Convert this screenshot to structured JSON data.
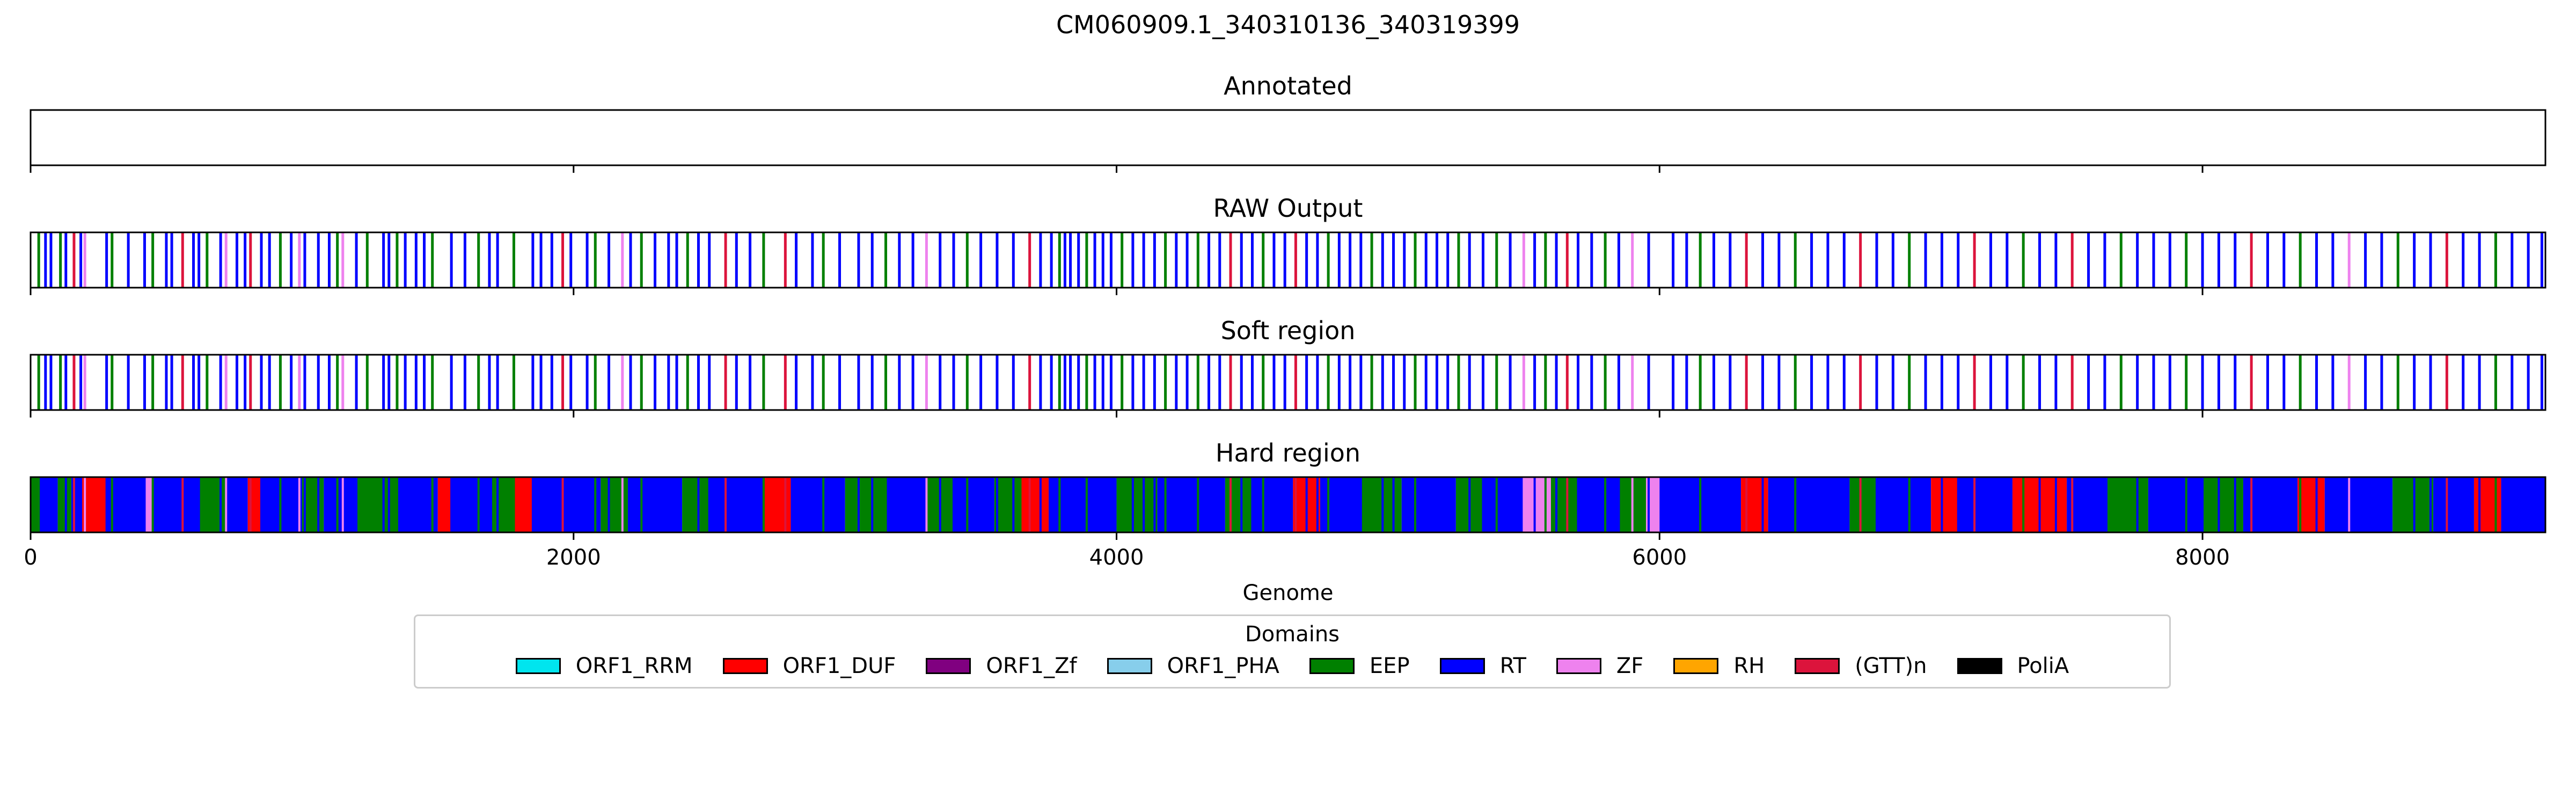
{
  "chart_data": {
    "type": "bar",
    "title": "CM060909.1_340310136_340319399",
    "xlabel": "Genome",
    "xlim": [
      0,
      9263
    ],
    "xticks": [
      0,
      2000,
      4000,
      6000,
      8000
    ],
    "xtick_labels": [
      "0",
      "2000",
      "4000",
      "6000",
      "8000"
    ],
    "panels": [
      {
        "title": "Annotated",
        "mode": "empty"
      },
      {
        "title": "RAW Output",
        "mode": "lines"
      },
      {
        "title": "Soft region",
        "mode": "lines"
      },
      {
        "title": "Hard region",
        "mode": "blocks"
      }
    ],
    "legend": {
      "title": "Domains",
      "placement": "bottom-center",
      "entries": [
        {
          "label": "ORF1_RRM",
          "color": "#00e5ee"
        },
        {
          "label": "ORF1_DUF",
          "color": "#ff0000"
        },
        {
          "label": "ORF1_Zf",
          "color": "#800080"
        },
        {
          "label": "ORF1_PHA",
          "color": "#87ceeb"
        },
        {
          "label": "EEP",
          "color": "#008000"
        },
        {
          "label": "RT",
          "color": "#0000ff"
        },
        {
          "label": "ZF",
          "color": "#ee82ee"
        },
        {
          "label": "RH",
          "color": "#ffa500"
        },
        {
          "label": "(GTT)n",
          "color": "#dc143c"
        },
        {
          "label": "PoliA",
          "color": "#000000"
        }
      ]
    },
    "raw_lines": [
      [
        30,
        "EEP"
      ],
      [
        55,
        "RT"
      ],
      [
        75,
        "RT"
      ],
      [
        110,
        "EEP"
      ],
      [
        130,
        "RT"
      ],
      [
        160,
        "(GTT)n"
      ],
      [
        185,
        "RT"
      ],
      [
        200,
        "ZF"
      ],
      [
        280,
        "RT"
      ],
      [
        300,
        "EEP"
      ],
      [
        360,
        "RT"
      ],
      [
        420,
        "RT"
      ],
      [
        450,
        "EEP"
      ],
      [
        500,
        "RT"
      ],
      [
        520,
        "RT"
      ],
      [
        560,
        "(GTT)n"
      ],
      [
        600,
        "RT"
      ],
      [
        620,
        "RT"
      ],
      [
        650,
        "EEP"
      ],
      [
        700,
        "RT"
      ],
      [
        720,
        "ZF"
      ],
      [
        760,
        "RT"
      ],
      [
        790,
        "RT"
      ],
      [
        810,
        "(GTT)n"
      ],
      [
        850,
        "RT"
      ],
      [
        880,
        "RT"
      ],
      [
        920,
        "EEP"
      ],
      [
        960,
        "RT"
      ],
      [
        990,
        "ZF"
      ],
      [
        1010,
        "RT"
      ],
      [
        1060,
        "RT"
      ],
      [
        1100,
        "RT"
      ],
      [
        1130,
        "EEP"
      ],
      [
        1150,
        "ZF"
      ],
      [
        1200,
        "RT"
      ],
      [
        1240,
        "EEP"
      ],
      [
        1300,
        "RT"
      ],
      [
        1320,
        "RT"
      ],
      [
        1350,
        "EEP"
      ],
      [
        1380,
        "RT"
      ],
      [
        1420,
        "RT"
      ],
      [
        1450,
        "RT"
      ],
      [
        1480,
        "EEP"
      ],
      [
        1550,
        "RT"
      ],
      [
        1600,
        "RT"
      ],
      [
        1650,
        "EEP"
      ],
      [
        1690,
        "RT"
      ],
      [
        1720,
        "RT"
      ],
      [
        1780,
        "EEP"
      ],
      [
        1850,
        "RT"
      ],
      [
        1880,
        "RT"
      ],
      [
        1920,
        "RT"
      ],
      [
        1960,
        "(GTT)n"
      ],
      [
        1990,
        "RT"
      ],
      [
        2050,
        "RT"
      ],
      [
        2080,
        "EEP"
      ],
      [
        2130,
        "RT"
      ],
      [
        2180,
        "ZF"
      ],
      [
        2210,
        "RT"
      ],
      [
        2250,
        "EEP"
      ],
      [
        2300,
        "RT"
      ],
      [
        2350,
        "RT"
      ],
      [
        2380,
        "RT"
      ],
      [
        2420,
        "EEP"
      ],
      [
        2460,
        "RT"
      ],
      [
        2500,
        "RT"
      ],
      [
        2560,
        "(GTT)n"
      ],
      [
        2600,
        "RT"
      ],
      [
        2650,
        "RT"
      ],
      [
        2700,
        "EEP"
      ],
      [
        2780,
        "(GTT)n"
      ],
      [
        2820,
        "RT"
      ],
      [
        2880,
        "RT"
      ],
      [
        2920,
        "EEP"
      ],
      [
        2980,
        "RT"
      ],
      [
        3050,
        "RT"
      ],
      [
        3100,
        "RT"
      ],
      [
        3150,
        "EEP"
      ],
      [
        3200,
        "RT"
      ],
      [
        3250,
        "RT"
      ],
      [
        3300,
        "ZF"
      ],
      [
        3350,
        "RT"
      ],
      [
        3400,
        "RT"
      ],
      [
        3450,
        "EEP"
      ],
      [
        3500,
        "RT"
      ],
      [
        3560,
        "RT"
      ],
      [
        3620,
        "RT"
      ],
      [
        3680,
        "(GTT)n"
      ],
      [
        3720,
        "RT"
      ],
      [
        3760,
        "RT"
      ],
      [
        3790,
        "EEP"
      ],
      [
        3810,
        "RT"
      ],
      [
        3830,
        "RT"
      ],
      [
        3860,
        "RT"
      ],
      [
        3890,
        "EEP"
      ],
      [
        3920,
        "RT"
      ],
      [
        3950,
        "RT"
      ],
      [
        3980,
        "RT"
      ],
      [
        4020,
        "EEP"
      ],
      [
        4060,
        "RT"
      ],
      [
        4100,
        "RT"
      ],
      [
        4140,
        "RT"
      ],
      [
        4180,
        "EEP"
      ],
      [
        4220,
        "RT"
      ],
      [
        4260,
        "RT"
      ],
      [
        4300,
        "EEP"
      ],
      [
        4340,
        "RT"
      ],
      [
        4380,
        "RT"
      ],
      [
        4420,
        "(GTT)n"
      ],
      [
        4460,
        "RT"
      ],
      [
        4500,
        "RT"
      ],
      [
        4540,
        "EEP"
      ],
      [
        4580,
        "RT"
      ],
      [
        4620,
        "RT"
      ],
      [
        4660,
        "(GTT)n"
      ],
      [
        4700,
        "RT"
      ],
      [
        4740,
        "RT"
      ],
      [
        4780,
        "EEP"
      ],
      [
        4820,
        "RT"
      ],
      [
        4860,
        "RT"
      ],
      [
        4900,
        "RT"
      ],
      [
        4940,
        "EEP"
      ],
      [
        4980,
        "RT"
      ],
      [
        5020,
        "RT"
      ],
      [
        5060,
        "RT"
      ],
      [
        5100,
        "EEP"
      ],
      [
        5140,
        "RT"
      ],
      [
        5180,
        "RT"
      ],
      [
        5220,
        "RT"
      ],
      [
        5260,
        "EEP"
      ],
      [
        5300,
        "RT"
      ],
      [
        5350,
        "RT"
      ],
      [
        5400,
        "EEP"
      ],
      [
        5450,
        "RT"
      ],
      [
        5500,
        "ZF"
      ],
      [
        5540,
        "RT"
      ],
      [
        5580,
        "EEP"
      ],
      [
        5620,
        "RT"
      ],
      [
        5660,
        "(GTT)n"
      ],
      [
        5700,
        "RT"
      ],
      [
        5750,
        "RT"
      ],
      [
        5800,
        "EEP"
      ],
      [
        5850,
        "RT"
      ],
      [
        5900,
        "ZF"
      ],
      [
        5960,
        "RT"
      ],
      [
        6050,
        "RT"
      ],
      [
        6100,
        "RT"
      ],
      [
        6150,
        "EEP"
      ],
      [
        6200,
        "RT"
      ],
      [
        6260,
        "RT"
      ],
      [
        6320,
        "(GTT)n"
      ],
      [
        6380,
        "RT"
      ],
      [
        6440,
        "RT"
      ],
      [
        6500,
        "EEP"
      ],
      [
        6560,
        "RT"
      ],
      [
        6620,
        "RT"
      ],
      [
        6680,
        "RT"
      ],
      [
        6740,
        "(GTT)n"
      ],
      [
        6800,
        "RT"
      ],
      [
        6860,
        "RT"
      ],
      [
        6920,
        "EEP"
      ],
      [
        6980,
        "RT"
      ],
      [
        7040,
        "RT"
      ],
      [
        7100,
        "RT"
      ],
      [
        7160,
        "(GTT)n"
      ],
      [
        7220,
        "RT"
      ],
      [
        7280,
        "RT"
      ],
      [
        7340,
        "EEP"
      ],
      [
        7400,
        "RT"
      ],
      [
        7460,
        "RT"
      ],
      [
        7520,
        "(GTT)n"
      ],
      [
        7580,
        "RT"
      ],
      [
        7640,
        "RT"
      ],
      [
        7700,
        "EEP"
      ],
      [
        7760,
        "RT"
      ],
      [
        7820,
        "RT"
      ],
      [
        7880,
        "RT"
      ],
      [
        7940,
        "EEP"
      ],
      [
        8000,
        "RT"
      ],
      [
        8060,
        "RT"
      ],
      [
        8120,
        "RT"
      ],
      [
        8180,
        "(GTT)n"
      ],
      [
        8240,
        "RT"
      ],
      [
        8300,
        "RT"
      ],
      [
        8360,
        "EEP"
      ],
      [
        8420,
        "RT"
      ],
      [
        8480,
        "RT"
      ],
      [
        8540,
        "ZF"
      ],
      [
        8600,
        "RT"
      ],
      [
        8660,
        "RT"
      ],
      [
        8720,
        "EEP"
      ],
      [
        8780,
        "RT"
      ],
      [
        8840,
        "RT"
      ],
      [
        8900,
        "(GTT)n"
      ],
      [
        8960,
        "RT"
      ],
      [
        9020,
        "RT"
      ],
      [
        9080,
        "EEP"
      ],
      [
        9140,
        "RT"
      ],
      [
        9200,
        "RT"
      ],
      [
        9250,
        "RT"
      ]
    ],
    "hard_blocks": [
      [
        0,
        30,
        "EEP"
      ],
      [
        30,
        100,
        "RT"
      ],
      [
        100,
        150,
        "EEP"
      ],
      [
        150,
        190,
        "RT"
      ],
      [
        190,
        280,
        "ORF1_DUF"
      ],
      [
        280,
        420,
        "RT"
      ],
      [
        420,
        450,
        "ZF"
      ],
      [
        450,
        620,
        "RT"
      ],
      [
        620,
        720,
        "EEP"
      ],
      [
        720,
        800,
        "RT"
      ],
      [
        800,
        850,
        "ORF1_DUF"
      ],
      [
        850,
        1000,
        "RT"
      ],
      [
        1000,
        1080,
        "EEP"
      ],
      [
        1080,
        1200,
        "RT"
      ],
      [
        1200,
        1350,
        "EEP"
      ],
      [
        1350,
        1500,
        "RT"
      ],
      [
        1500,
        1550,
        "ORF1_DUF"
      ],
      [
        1550,
        1700,
        "RT"
      ],
      [
        1700,
        1780,
        "EEP"
      ],
      [
        1780,
        1850,
        "ORF1_DUF"
      ],
      [
        1850,
        2100,
        "RT"
      ],
      [
        2100,
        2200,
        "EEP"
      ],
      [
        2200,
        2400,
        "RT"
      ],
      [
        2400,
        2500,
        "EEP"
      ],
      [
        2500,
        2700,
        "RT"
      ],
      [
        2700,
        2800,
        "ORF1_DUF"
      ],
      [
        2800,
        3000,
        "RT"
      ],
      [
        3000,
        3150,
        "EEP"
      ],
      [
        3150,
        3300,
        "RT"
      ],
      [
        3300,
        3400,
        "EEP"
      ],
      [
        3400,
        3550,
        "RT"
      ],
      [
        3550,
        3650,
        "EEP"
      ],
      [
        3650,
        3750,
        "ORF1_DUF"
      ],
      [
        3750,
        4000,
        "RT"
      ],
      [
        4000,
        4150,
        "EEP"
      ],
      [
        4150,
        4400,
        "RT"
      ],
      [
        4400,
        4500,
        "EEP"
      ],
      [
        4500,
        4650,
        "RT"
      ],
      [
        4650,
        4750,
        "ORF1_DUF"
      ],
      [
        4750,
        4900,
        "RT"
      ],
      [
        4900,
        5050,
        "EEP"
      ],
      [
        5050,
        5250,
        "RT"
      ],
      [
        5250,
        5350,
        "EEP"
      ],
      [
        5350,
        5500,
        "RT"
      ],
      [
        5500,
        5600,
        "ZF"
      ],
      [
        5600,
        5700,
        "EEP"
      ],
      [
        5700,
        5850,
        "RT"
      ],
      [
        5850,
        5950,
        "EEP"
      ],
      [
        5950,
        6000,
        "ZF"
      ],
      [
        6000,
        6300,
        "RT"
      ],
      [
        6300,
        6400,
        "ORF1_DUF"
      ],
      [
        6400,
        6700,
        "RT"
      ],
      [
        6700,
        6800,
        "EEP"
      ],
      [
        6800,
        7000,
        "RT"
      ],
      [
        7000,
        7100,
        "ORF1_DUF"
      ],
      [
        7100,
        7300,
        "RT"
      ],
      [
        7300,
        7500,
        "ORF1_DUF"
      ],
      [
        7500,
        7650,
        "RT"
      ],
      [
        7650,
        7800,
        "EEP"
      ],
      [
        7800,
        8000,
        "RT"
      ],
      [
        8000,
        8150,
        "EEP"
      ],
      [
        8150,
        8350,
        "RT"
      ],
      [
        8350,
        8450,
        "ORF1_DUF"
      ],
      [
        8450,
        8700,
        "RT"
      ],
      [
        8700,
        8850,
        "EEP"
      ],
      [
        8850,
        9000,
        "RT"
      ],
      [
        9000,
        9100,
        "ORF1_DUF"
      ],
      [
        9100,
        9263,
        "RT"
      ]
    ]
  }
}
